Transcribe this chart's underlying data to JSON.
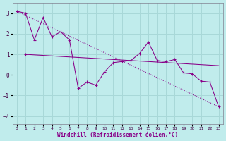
{
  "xlabel": "Windchill (Refroidissement éolien,°C)",
  "background_color": "#c0ecec",
  "grid_color": "#a8d8d8",
  "line_color": "#880088",
  "xlim": [
    -0.5,
    23.5
  ],
  "ylim": [
    -2.4,
    3.5
  ],
  "yticks": [
    -2,
    -1,
    0,
    1,
    2,
    3
  ],
  "xticks": [
    0,
    1,
    2,
    3,
    4,
    5,
    6,
    7,
    8,
    9,
    10,
    11,
    12,
    13,
    14,
    15,
    16,
    17,
    18,
    19,
    20,
    21,
    22,
    23
  ],
  "zigzag_x": [
    0,
    1,
    2,
    3,
    4,
    5,
    6,
    7,
    8,
    9,
    10,
    11,
    12,
    13,
    14,
    15,
    16,
    17,
    18,
    19,
    20,
    21,
    22,
    23
  ],
  "zigzag_y": [
    3.1,
    3.0,
    1.7,
    2.8,
    1.85,
    2.1,
    1.7,
    -0.65,
    -0.35,
    -0.5,
    0.15,
    0.6,
    0.65,
    0.7,
    1.05,
    1.6,
    0.7,
    0.65,
    0.75,
    0.1,
    0.05,
    -0.3,
    -0.35,
    -1.55
  ],
  "trend1_x": [
    0,
    23
  ],
  "trend1_y": [
    3.1,
    -1.55
  ],
  "trend2_x": [
    1,
    23
  ],
  "trend2_y": [
    1.0,
    0.45
  ],
  "trend3_x": [
    0,
    23
  ],
  "trend3_y": [
    3.1,
    -1.55
  ]
}
